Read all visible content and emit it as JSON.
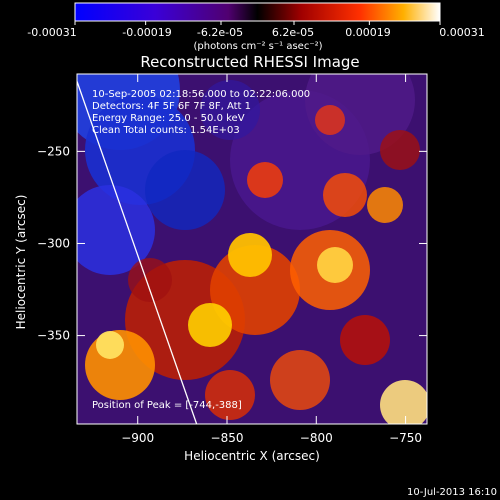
{
  "colorbar": {
    "ticks": [
      "-0.00031",
      "-0.00019",
      "-6.2e-05",
      "6.2e-05",
      "0.00019",
      "0.00031"
    ],
    "units_line": "(photons cm⁻² s⁻¹ asec⁻²)",
    "range": [
      -0.00031,
      0.00031
    ]
  },
  "chart_data": {
    "type": "heatmap",
    "title": "Reconstructed RHESSI Image",
    "xlabel": "Heliocentric X (arcsec)",
    "ylabel": "Heliocentric Y (arcsec)",
    "xlim": [
      -934,
      -738
    ],
    "ylim": [
      -398,
      -208
    ],
    "x_ticks": [
      -900,
      -850,
      -800,
      -750
    ],
    "y_ticks": [
      -250,
      -300,
      -350
    ],
    "annotations": {
      "time_range": "10-Sep-2005 02:18:56.000 to 02:22:06.000",
      "detectors": "Detectors: 4F 5F 6F 7F 8F, Att 1",
      "energy": "Energy Range: 25.0 - 50.0 keV",
      "clean": "Clean    Total counts: 1.54E+03",
      "peak": "Position of Peak = [-744,-388]"
    },
    "limb_line": {
      "x": [
        -934,
        -867
      ],
      "y": [
        -212,
        -398
      ]
    },
    "peak_position": [
      -744,
      -388
    ]
  },
  "footer": {
    "timestamp": "10-Jul-2013 16:10"
  },
  "colors": {
    "background": "#000000",
    "foreground": "#ffffff"
  }
}
